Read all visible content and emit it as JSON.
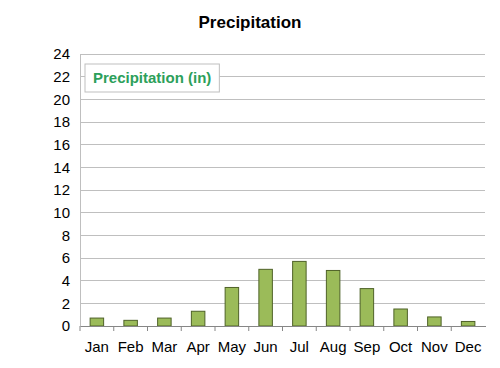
{
  "chart_data": {
    "type": "bar",
    "title": "Precipitation",
    "categories": [
      "Jan",
      "Feb",
      "Mar",
      "Apr",
      "May",
      "Jun",
      "Jul",
      "Aug",
      "Sep",
      "Oct",
      "Nov",
      "Dec"
    ],
    "series": [
      {
        "name": "Precipitation (in)",
        "color": "#9bbb59",
        "values": [
          0.7,
          0.5,
          0.7,
          1.3,
          3.4,
          5.0,
          5.7,
          4.9,
          3.3,
          1.5,
          0.8,
          0.4
        ]
      }
    ],
    "ylim": [
      0,
      24
    ],
    "yticks": [
      0,
      2,
      4,
      6,
      8,
      10,
      12,
      14,
      16,
      18,
      20,
      22,
      24
    ],
    "grid": true,
    "legend": "upper left"
  }
}
